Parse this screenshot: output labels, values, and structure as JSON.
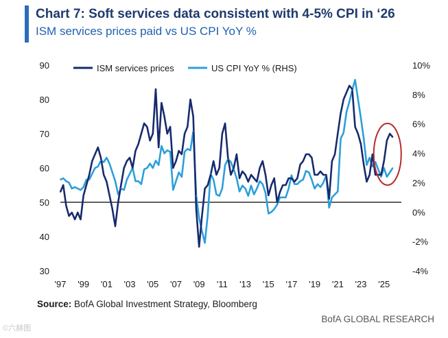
{
  "header": {
    "title": "Chart 7: Soft services data consistent with 4-5% CPI in ‘26",
    "subtitle": "ISM services prices paid vs US CPI YoY %"
  },
  "footer": {
    "source_label": "Source:",
    "source_text": " BofA Global Investment Strategy, Bloomberg",
    "brand": "BofA GLOBAL RESEARCH",
    "watermark": "©六赫图"
  },
  "colors": {
    "accent": "#2a6ebb",
    "ism_series": "#172a6e",
    "cpi_series": "#2c9fd9",
    "highlight_circle": "#b42b2b",
    "title": "#1f3a6e",
    "subtitle": "#2060b0"
  },
  "chart_data": {
    "type": "line",
    "title": "Chart 7: Soft services data consistent with 4-5% CPI in ‘26",
    "subtitle": "ISM services prices paid vs US CPI YoY %",
    "x_tick_labels": [
      "'97",
      "'99",
      "'01",
      "'03",
      "'05",
      "'07",
      "'09",
      "'11",
      "'13",
      "'15",
      "'17",
      "'19",
      "'21",
      "'23",
      "'25"
    ],
    "xlim": [
      1997,
      2026.5
    ],
    "y_left": {
      "lim": [
        30,
        90
      ],
      "ticks": [
        "30",
        "40",
        "50",
        "60",
        "70",
        "80",
        "90"
      ]
    },
    "y_right": {
      "lim": [
        -4,
        10
      ],
      "ticks": [
        "-4%",
        "-2%",
        "0%",
        "2%",
        "4%",
        "6%",
        "8%",
        "10%"
      ]
    },
    "reference_line": {
      "axis": "left",
      "value": 50
    },
    "legend": {
      "placement": "top"
    },
    "annotation": {
      "shape": "ellipse",
      "target": "ISM services prices 2024-2025 surge"
    },
    "series": [
      {
        "name": "ISM services prices",
        "axis": "left",
        "points": [
          [
            1997.0,
            53
          ],
          [
            1997.25,
            55
          ],
          [
            1997.5,
            49
          ],
          [
            1997.75,
            46
          ],
          [
            1998.0,
            47
          ],
          [
            1998.25,
            45
          ],
          [
            1998.5,
            47
          ],
          [
            1998.75,
            45
          ],
          [
            1999.0,
            52
          ],
          [
            1999.25,
            55
          ],
          [
            1999.5,
            58
          ],
          [
            1999.75,
            62
          ],
          [
            2000.0,
            64
          ],
          [
            2000.25,
            66
          ],
          [
            2000.5,
            63
          ],
          [
            2000.75,
            58
          ],
          [
            2001.0,
            56
          ],
          [
            2001.25,
            52
          ],
          [
            2001.5,
            48
          ],
          [
            2001.75,
            43
          ],
          [
            2002.0,
            50
          ],
          [
            2002.25,
            55
          ],
          [
            2002.5,
            60
          ],
          [
            2002.75,
            62
          ],
          [
            2003.0,
            63
          ],
          [
            2003.25,
            60
          ],
          [
            2003.5,
            65
          ],
          [
            2003.75,
            67
          ],
          [
            2004.0,
            70
          ],
          [
            2004.25,
            73
          ],
          [
            2004.5,
            72
          ],
          [
            2004.75,
            68
          ],
          [
            2005.0,
            70
          ],
          [
            2005.25,
            83
          ],
          [
            2005.5,
            66
          ],
          [
            2005.75,
            79
          ],
          [
            2006.0,
            75
          ],
          [
            2006.25,
            70
          ],
          [
            2006.5,
            72
          ],
          [
            2006.75,
            60
          ],
          [
            2007.0,
            62
          ],
          [
            2007.25,
            65
          ],
          [
            2007.5,
            64
          ],
          [
            2007.75,
            70
          ],
          [
            2008.0,
            72
          ],
          [
            2008.25,
            80
          ],
          [
            2008.5,
            75
          ],
          [
            2008.75,
            48
          ],
          [
            2009.0,
            37
          ],
          [
            2009.25,
            46
          ],
          [
            2009.5,
            54
          ],
          [
            2009.75,
            55
          ],
          [
            2010.0,
            58
          ],
          [
            2010.25,
            62
          ],
          [
            2010.5,
            58
          ],
          [
            2010.75,
            60
          ],
          [
            2011.0,
            70
          ],
          [
            2011.25,
            73
          ],
          [
            2011.5,
            63
          ],
          [
            2011.75,
            58
          ],
          [
            2012.0,
            60
          ],
          [
            2012.25,
            64
          ],
          [
            2012.5,
            57
          ],
          [
            2012.75,
            59
          ],
          [
            2013.0,
            58
          ],
          [
            2013.25,
            56
          ],
          [
            2013.5,
            58
          ],
          [
            2013.75,
            57
          ],
          [
            2014.0,
            56
          ],
          [
            2014.25,
            60
          ],
          [
            2014.5,
            62
          ],
          [
            2014.75,
            58
          ],
          [
            2015.0,
            52
          ],
          [
            2015.25,
            55
          ],
          [
            2015.5,
            57
          ],
          [
            2015.75,
            50
          ],
          [
            2016.0,
            53
          ],
          [
            2016.25,
            55
          ],
          [
            2016.5,
            55
          ],
          [
            2016.75,
            57
          ],
          [
            2017.0,
            57
          ],
          [
            2017.25,
            56
          ],
          [
            2017.5,
            57
          ],
          [
            2017.75,
            61
          ],
          [
            2018.0,
            62
          ],
          [
            2018.25,
            64
          ],
          [
            2018.5,
            64
          ],
          [
            2018.75,
            63
          ],
          [
            2019.0,
            58
          ],
          [
            2019.25,
            58
          ],
          [
            2019.5,
            59
          ],
          [
            2019.75,
            58
          ],
          [
            2020.0,
            58
          ],
          [
            2020.25,
            51
          ],
          [
            2020.5,
            62
          ],
          [
            2020.75,
            64
          ],
          [
            2021.0,
            70
          ],
          [
            2021.25,
            76
          ],
          [
            2021.5,
            80
          ],
          [
            2021.75,
            82
          ],
          [
            2022.0,
            84
          ],
          [
            2022.25,
            83
          ],
          [
            2022.5,
            72
          ],
          [
            2022.75,
            70
          ],
          [
            2023.0,
            67
          ],
          [
            2023.25,
            61
          ],
          [
            2023.5,
            56
          ],
          [
            2023.75,
            58
          ],
          [
            2024.0,
            64
          ],
          [
            2024.25,
            58
          ],
          [
            2024.5,
            58
          ],
          [
            2024.75,
            58
          ],
          [
            2025.0,
            62
          ],
          [
            2025.25,
            68
          ],
          [
            2025.5,
            70
          ],
          [
            2025.75,
            69
          ]
        ]
      },
      {
        "name": "US CPI YoY % (RHS)",
        "axis": "right",
        "points": [
          [
            1997.0,
            2.2
          ],
          [
            1997.25,
            2.3
          ],
          [
            1997.5,
            2.1
          ],
          [
            1997.75,
            2.0
          ],
          [
            1998.0,
            1.6
          ],
          [
            1998.25,
            1.7
          ],
          [
            1998.5,
            1.6
          ],
          [
            1998.75,
            1.5
          ],
          [
            1999.0,
            1.7
          ],
          [
            1999.25,
            2.2
          ],
          [
            1999.5,
            2.2
          ],
          [
            1999.75,
            2.6
          ],
          [
            2000.0,
            3.0
          ],
          [
            2000.25,
            3.1
          ],
          [
            2000.5,
            3.5
          ],
          [
            2000.75,
            3.4
          ],
          [
            2001.0,
            3.7
          ],
          [
            2001.25,
            3.3
          ],
          [
            2001.5,
            2.7
          ],
          [
            2001.75,
            2.1
          ],
          [
            2002.0,
            1.2
          ],
          [
            2002.25,
            1.6
          ],
          [
            2002.5,
            1.5
          ],
          [
            2002.75,
            2.2
          ],
          [
            2003.0,
            2.6
          ],
          [
            2003.25,
            3.0
          ],
          [
            2003.5,
            2.1
          ],
          [
            2003.75,
            2.1
          ],
          [
            2004.0,
            1.9
          ],
          [
            2004.25,
            2.9
          ],
          [
            2004.5,
            3.0
          ],
          [
            2004.75,
            3.3
          ],
          [
            2005.0,
            3.0
          ],
          [
            2005.25,
            3.5
          ],
          [
            2005.5,
            3.2
          ],
          [
            2005.75,
            4.5
          ],
          [
            2006.0,
            4.0
          ],
          [
            2006.25,
            4.2
          ],
          [
            2006.5,
            4.1
          ],
          [
            2006.75,
            1.5
          ],
          [
            2007.0,
            2.1
          ],
          [
            2007.25,
            2.7
          ],
          [
            2007.5,
            2.4
          ],
          [
            2007.75,
            4.1
          ],
          [
            2008.0,
            4.3
          ],
          [
            2008.25,
            4.2
          ],
          [
            2008.5,
            5.5
          ],
          [
            2008.75,
            1.1
          ],
          [
            2009.0,
            -0.4
          ],
          [
            2009.25,
            -1.3
          ],
          [
            2009.5,
            -2.1
          ],
          [
            2009.75,
            -0.2
          ],
          [
            2010.0,
            2.6
          ],
          [
            2010.25,
            2.2
          ],
          [
            2010.5,
            1.2
          ],
          [
            2010.75,
            1.1
          ],
          [
            2011.0,
            1.6
          ],
          [
            2011.25,
            3.2
          ],
          [
            2011.5,
            3.6
          ],
          [
            2011.75,
            3.4
          ],
          [
            2012.0,
            2.9
          ],
          [
            2012.25,
            2.3
          ],
          [
            2012.5,
            1.4
          ],
          [
            2012.75,
            1.8
          ],
          [
            2013.0,
            1.6
          ],
          [
            2013.25,
            1.1
          ],
          [
            2013.5,
            1.8
          ],
          [
            2013.75,
            1.2
          ],
          [
            2014.0,
            1.6
          ],
          [
            2014.25,
            2.1
          ],
          [
            2014.5,
            1.9
          ],
          [
            2014.75,
            1.3
          ],
          [
            2015.0,
            -0.1
          ],
          [
            2015.25,
            0.0
          ],
          [
            2015.5,
            0.2
          ],
          [
            2015.75,
            0.5
          ],
          [
            2016.0,
            1.0
          ],
          [
            2016.25,
            1.0
          ],
          [
            2016.5,
            1.0
          ],
          [
            2016.75,
            1.6
          ],
          [
            2017.0,
            2.5
          ],
          [
            2017.25,
            1.9
          ],
          [
            2017.5,
            1.9
          ],
          [
            2017.75,
            2.1
          ],
          [
            2018.0,
            2.2
          ],
          [
            2018.25,
            2.8
          ],
          [
            2018.5,
            2.7
          ],
          [
            2018.75,
            2.2
          ],
          [
            2019.0,
            1.6
          ],
          [
            2019.25,
            1.9
          ],
          [
            2019.5,
            1.7
          ],
          [
            2019.75,
            2.0
          ],
          [
            2020.0,
            2.5
          ],
          [
            2020.25,
            0.3
          ],
          [
            2020.5,
            1.0
          ],
          [
            2020.75,
            1.2
          ],
          [
            2021.0,
            1.4
          ],
          [
            2021.25,
            5.0
          ],
          [
            2021.5,
            5.4
          ],
          [
            2021.75,
            6.8
          ],
          [
            2022.0,
            7.5
          ],
          [
            2022.25,
            8.3
          ],
          [
            2022.5,
            9.0
          ],
          [
            2022.75,
            7.7
          ],
          [
            2023.0,
            6.4
          ],
          [
            2023.25,
            5.0
          ],
          [
            2023.5,
            3.2
          ],
          [
            2023.75,
            3.7
          ],
          [
            2024.0,
            3.1
          ],
          [
            2024.25,
            3.4
          ],
          [
            2024.5,
            2.9
          ],
          [
            2024.75,
            2.4
          ],
          [
            2025.0,
            3.0
          ],
          [
            2025.25,
            2.4
          ],
          [
            2025.5,
            2.7
          ],
          [
            2025.75,
            3.0
          ]
        ]
      }
    ]
  }
}
